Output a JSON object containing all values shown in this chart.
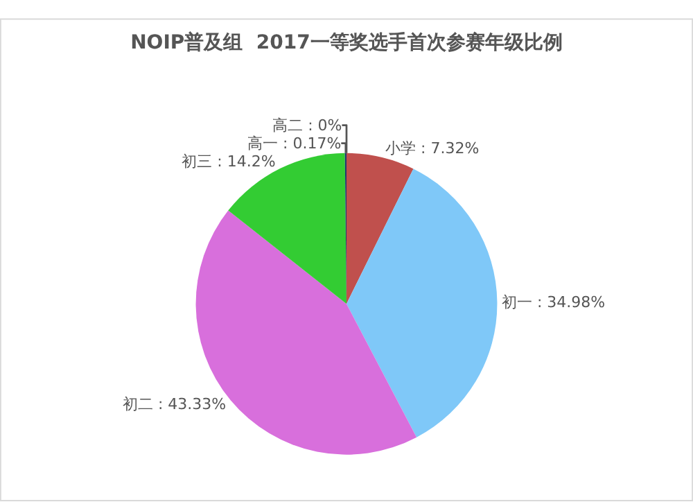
{
  "chart_data": {
    "type": "pie",
    "title": "NOIP普及组  2017一等奖选手首次参赛年级比例",
    "categories": [
      "小学",
      "初一",
      "初二",
      "初三",
      "高一",
      "高二"
    ],
    "values": [
      7.32,
      34.98,
      43.33,
      14.2,
      0.17,
      0
    ],
    "colors": [
      "#c0504d",
      "#7fc8f8",
      "#d86fdc",
      "#33cc33",
      "#1f3a6e",
      "#e8a0c8"
    ],
    "value_labels": [
      ": 7.32%",
      ": 34.98%",
      ": 43.33%",
      ": 14.2%",
      ": 0.17%",
      ": 0%"
    ],
    "legend": false
  }
}
